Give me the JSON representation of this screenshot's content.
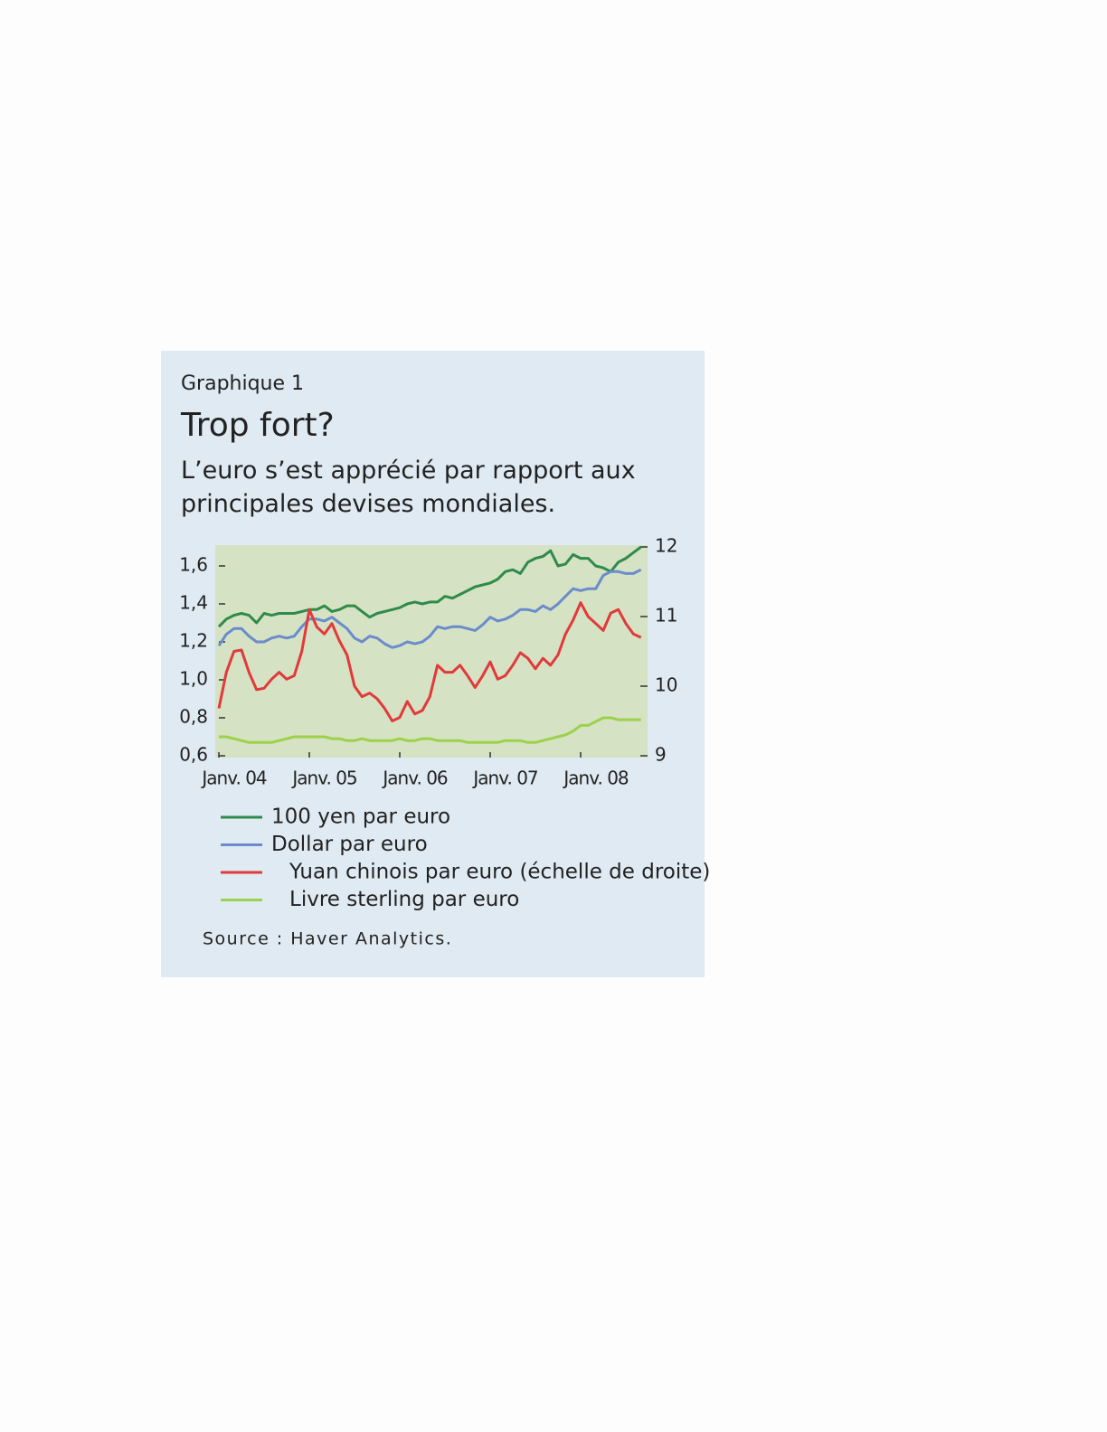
{
  "chart_data": {
    "type": "line",
    "figure_label": "Graphique 1",
    "title": "Trop fort?",
    "subtitle": "L’euro s’est apprécié par rapport aux principales devises mondiales.",
    "source": "Source : Haver Analytics.",
    "categories": [
      "Janv. 04",
      null,
      null,
      null,
      null,
      null,
      null,
      null,
      null,
      null,
      null,
      null,
      "Janv. 05",
      null,
      null,
      null,
      null,
      null,
      null,
      null,
      null,
      null,
      null,
      null,
      "Janv. 06",
      null,
      null,
      null,
      null,
      null,
      null,
      null,
      null,
      null,
      null,
      null,
      "Janv. 07",
      null,
      null,
      null,
      null,
      null,
      null,
      null,
      null,
      null,
      null,
      null,
      "Janv. 08",
      null,
      null,
      null,
      null,
      null,
      null,
      null,
      null
    ],
    "ylim": [
      0.6,
      1.7
    ],
    "yticks": [
      {
        "value": 0.6,
        "label": "0,6"
      },
      {
        "value": 0.8,
        "label": "0,8"
      },
      {
        "value": 1.0,
        "label": "1,0"
      },
      {
        "value": 1.2,
        "label": "1,2"
      },
      {
        "value": 1.4,
        "label": "1,4"
      },
      {
        "value": 1.6,
        "label": "1,6"
      }
    ],
    "y2lim": [
      9,
      12
    ],
    "y2ticks": [
      9,
      10,
      11,
      12
    ],
    "series": [
      {
        "name": "100 yen par euro",
        "color": "#2e8b4a",
        "values": [
          1.28,
          1.32,
          1.34,
          1.35,
          1.34,
          1.3,
          1.35,
          1.34,
          1.35,
          1.35,
          1.35,
          1.36,
          1.37,
          1.37,
          1.39,
          1.36,
          1.37,
          1.39,
          1.39,
          1.36,
          1.33,
          1.35,
          1.36,
          1.37,
          1.38,
          1.4,
          1.41,
          1.4,
          1.41,
          1.41,
          1.44,
          1.43,
          1.45,
          1.47,
          1.49,
          1.5,
          1.51,
          1.53,
          1.57,
          1.58,
          1.56,
          1.62,
          1.64,
          1.65,
          1.68,
          1.6,
          1.61,
          1.66,
          1.64,
          1.64,
          1.6,
          1.59,
          1.57,
          1.62,
          1.64,
          1.67,
          1.7
        ]
      },
      {
        "name": "Dollar par euro",
        "color": "#6a8ccc",
        "values": [
          1.18,
          1.24,
          1.27,
          1.27,
          1.23,
          1.2,
          1.2,
          1.22,
          1.23,
          1.22,
          1.23,
          1.28,
          1.32,
          1.32,
          1.31,
          1.33,
          1.3,
          1.27,
          1.22,
          1.2,
          1.23,
          1.22,
          1.19,
          1.17,
          1.18,
          1.2,
          1.19,
          1.2,
          1.23,
          1.28,
          1.27,
          1.28,
          1.28,
          1.27,
          1.26,
          1.29,
          1.33,
          1.31,
          1.32,
          1.34,
          1.37,
          1.37,
          1.36,
          1.39,
          1.37,
          1.4,
          1.44,
          1.48,
          1.47,
          1.48,
          1.48,
          1.55,
          1.57,
          1.57,
          1.56,
          1.56,
          1.58
        ]
      },
      {
        "name": "Yuan chinois par euro (échelle de droite)",
        "color": "#e03a3a",
        "axis": "y2",
        "values": [
          9.68,
          10.2,
          10.5,
          10.52,
          10.2,
          9.95,
          9.97,
          10.1,
          10.2,
          10.1,
          10.15,
          10.5,
          11.1,
          10.85,
          10.75,
          10.9,
          10.65,
          10.45,
          10.0,
          9.85,
          9.9,
          9.82,
          9.68,
          9.5,
          9.55,
          9.78,
          9.6,
          9.65,
          9.85,
          10.3,
          10.2,
          10.2,
          10.3,
          10.15,
          9.98,
          10.15,
          10.35,
          10.1,
          10.15,
          10.3,
          10.48,
          10.4,
          10.25,
          10.4,
          10.3,
          10.45,
          10.75,
          10.95,
          11.2,
          11.0,
          10.9,
          10.8,
          11.05,
          11.1,
          10.9,
          10.75,
          10.7
        ]
      },
      {
        "name": "Livre sterling par euro",
        "color": "#9cd14a",
        "values": [
          0.7,
          0.7,
          0.69,
          0.68,
          0.67,
          0.67,
          0.67,
          0.67,
          0.68,
          0.69,
          0.7,
          0.7,
          0.7,
          0.7,
          0.7,
          0.69,
          0.69,
          0.68,
          0.68,
          0.69,
          0.68,
          0.68,
          0.68,
          0.68,
          0.69,
          0.68,
          0.68,
          0.69,
          0.69,
          0.68,
          0.68,
          0.68,
          0.68,
          0.67,
          0.67,
          0.67,
          0.67,
          0.67,
          0.68,
          0.68,
          0.68,
          0.67,
          0.67,
          0.68,
          0.69,
          0.7,
          0.71,
          0.73,
          0.76,
          0.76,
          0.78,
          0.8,
          0.8,
          0.79,
          0.79,
          0.79,
          0.79
        ]
      }
    ]
  }
}
